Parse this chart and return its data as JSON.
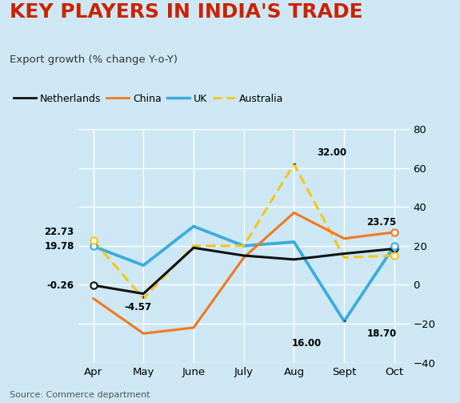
{
  "title": "KEY PLAYERS IN INDIA'S TRADE",
  "subtitle": "Export growth (% change Y-o-Y)",
  "source": "Source: Commerce department",
  "months": [
    "Apr",
    "May",
    "June",
    "July",
    "Aug",
    "Sept",
    "Oct"
  ],
  "netherlands": [
    -0.26,
    -4.57,
    19.0,
    15.0,
    13.0,
    16.0,
    18.5
  ],
  "china": [
    -7.0,
    -25.0,
    -22.0,
    14.0,
    37.0,
    23.75,
    27.0
  ],
  "uk": [
    19.78,
    10.0,
    30.0,
    20.0,
    22.0,
    -18.7,
    20.0
  ],
  "australia": [
    22.73,
    -7.0,
    20.0,
    20.0,
    62.0,
    14.0,
    15.0
  ],
  "colors": {
    "netherlands": "#111111",
    "china": "#f07820",
    "uk": "#3aacdc",
    "australia": "#f5c518",
    "background": "#cde8f4",
    "title_color": "#cc2200"
  },
  "ylim": [
    -40,
    80
  ],
  "yticks": [
    -40,
    -20,
    0,
    20,
    40,
    60,
    80
  ],
  "figsize": [
    5.75,
    5.03
  ],
  "dpi": 100
}
